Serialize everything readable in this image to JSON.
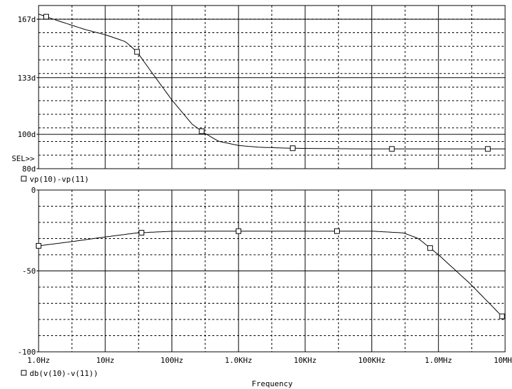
{
  "chart_data": [
    {
      "type": "line",
      "x_scale": "log",
      "xlim": [
        1,
        10000000
      ],
      "ylim": [
        80,
        175
      ],
      "y_ticks": [
        80,
        100,
        133,
        167
      ],
      "y_tick_labels": [
        "80d",
        "100d",
        "133d",
        "167d"
      ],
      "sel_marker": "SEL>>",
      "grid": true,
      "series": [
        {
          "name": "vp(10)-vp(11)",
          "marker": "square",
          "color": "#000000",
          "x": [
            1,
            2,
            5,
            10,
            20,
            30,
            50,
            100,
            200,
            300,
            500,
            1000,
            2000,
            5000,
            10000,
            100000,
            1000000,
            10000000
          ],
          "y": [
            170,
            166,
            161,
            158,
            154,
            148,
            136,
            120,
            106,
            101,
            96,
            93.5,
            92.5,
            92,
            91.8,
            91.5,
            91.5,
            91.5
          ],
          "marker_x": [
            1.3,
            30,
            280,
            6500,
            200000,
            5500000
          ]
        }
      ]
    },
    {
      "type": "line",
      "x_scale": "log",
      "xlim": [
        1,
        10000000
      ],
      "ylim": [
        -100,
        0
      ],
      "y_ticks": [
        -100,
        -50,
        0
      ],
      "y_tick_labels": [
        "-100",
        "-50",
        "0"
      ],
      "x_tick_labels": [
        "1.0Hz",
        "10Hz",
        "100Hz",
        "1.0KHz",
        "10KHz",
        "100KHz",
        "1.0MHz",
        "10MHz"
      ],
      "xlabel": "Frequency",
      "grid": true,
      "series": [
        {
          "name": "db(v(10)-v(11))",
          "marker": "square",
          "color": "#000000",
          "x": [
            1,
            3,
            10,
            30,
            100,
            1000,
            10000,
            100000,
            300000,
            500000,
            1000000,
            3000000,
            10000000
          ],
          "y": [
            -34.5,
            -32,
            -29,
            -26.5,
            -25.5,
            -25.4,
            -25.4,
            -25.4,
            -26.5,
            -30,
            -40,
            -58,
            -80
          ],
          "marker_x": [
            1,
            35,
            1000,
            30000,
            750000,
            9000000
          ]
        }
      ]
    }
  ]
}
